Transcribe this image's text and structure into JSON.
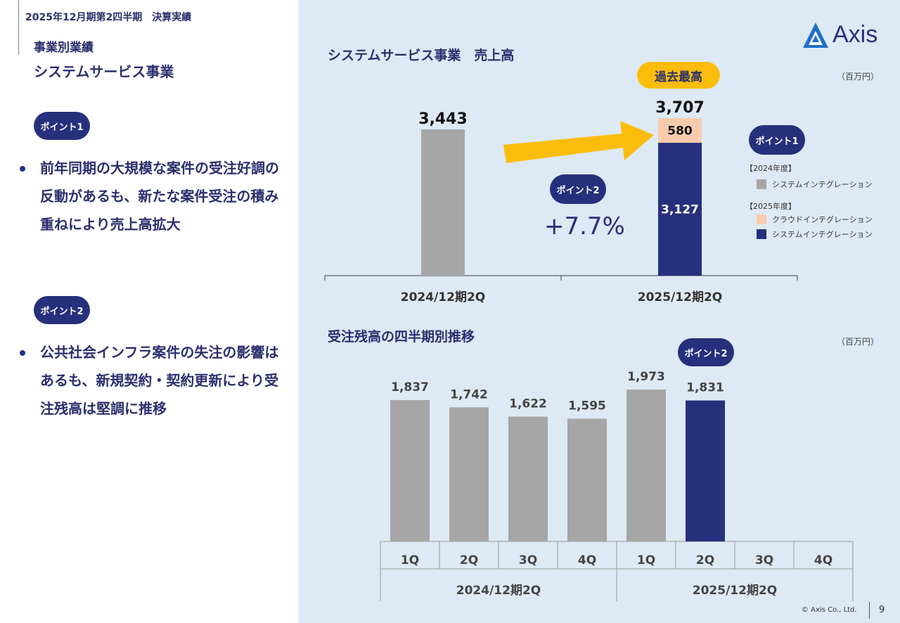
{
  "header": {
    "pretitle": "2025年12月期第2四半期　決算実績",
    "section": "事業別業績",
    "subsection": "システムサービス事業"
  },
  "left": {
    "points": [
      {
        "label": "ポイント1",
        "text": "前年同期の大規模な案件の受注好調の反動があるも、新たな案件受注の積み重ねにより売上高拡大"
      },
      {
        "label": "ポイント2",
        "text": "公共社会インフラ案件の失注の影響はあるも、新規契約・契約更新により受注残高は堅調に推移"
      }
    ]
  },
  "logo": {
    "text": "Axis"
  },
  "footer": {
    "copyright": "© Axis Co., Ltd.",
    "page": "9"
  },
  "colors": {
    "navy": "#27307c",
    "gray": "#a6a6a6",
    "peach": "#f8cbad",
    "yellow": "#fbbd0c",
    "panel": "#dde9f4"
  },
  "chart1": {
    "title": "システムサービス事業　売上高",
    "unit": "（百万円）",
    "badge": "過去最高",
    "point1_label": "ポイント1",
    "point2_label": "ポイント2",
    "growth": "+7.7%",
    "legend": {
      "h2024": "【2024年度】",
      "h2025": "【2025年度】",
      "si_2024": "システムインテグレーション",
      "cloud_2025": "クラウドインテグレーション",
      "si_2025": "システムインテグレーション"
    }
  },
  "chart2": {
    "title": "受注残高の四半期別推移",
    "unit": "（百万円）",
    "point2_label": "ポイント2"
  },
  "chart_data": [
    {
      "type": "bar",
      "title": "システムサービス事業　売上高",
      "categories": [
        "2024/12期2Q",
        "2025/12期2Q"
      ],
      "series": [
        {
          "name": "システムインテグレーション",
          "values": [
            3443,
            3127
          ]
        },
        {
          "name": "クラウドインテグレーション",
          "values": [
            0,
            580
          ]
        }
      ],
      "totals": [
        "3,443",
        "3,707"
      ],
      "segment_labels": [
        "3,127",
        "580"
      ],
      "ylim": [
        0,
        4000
      ]
    },
    {
      "type": "bar",
      "title": "受注残高の四半期別推移",
      "quarters": [
        "1Q",
        "2Q",
        "3Q",
        "4Q",
        "1Q",
        "2Q",
        "3Q",
        "4Q"
      ],
      "groups": [
        "2024/12期2Q",
        "2025/12期2Q"
      ],
      "values": [
        1837,
        1742,
        1622,
        1595,
        1973,
        1831,
        null,
        null
      ],
      "value_labels": [
        "1,837",
        "1,742",
        "1,622",
        "1,595",
        "1,973",
        "1,831",
        "",
        ""
      ],
      "ylim": [
        0,
        2200
      ]
    }
  ]
}
